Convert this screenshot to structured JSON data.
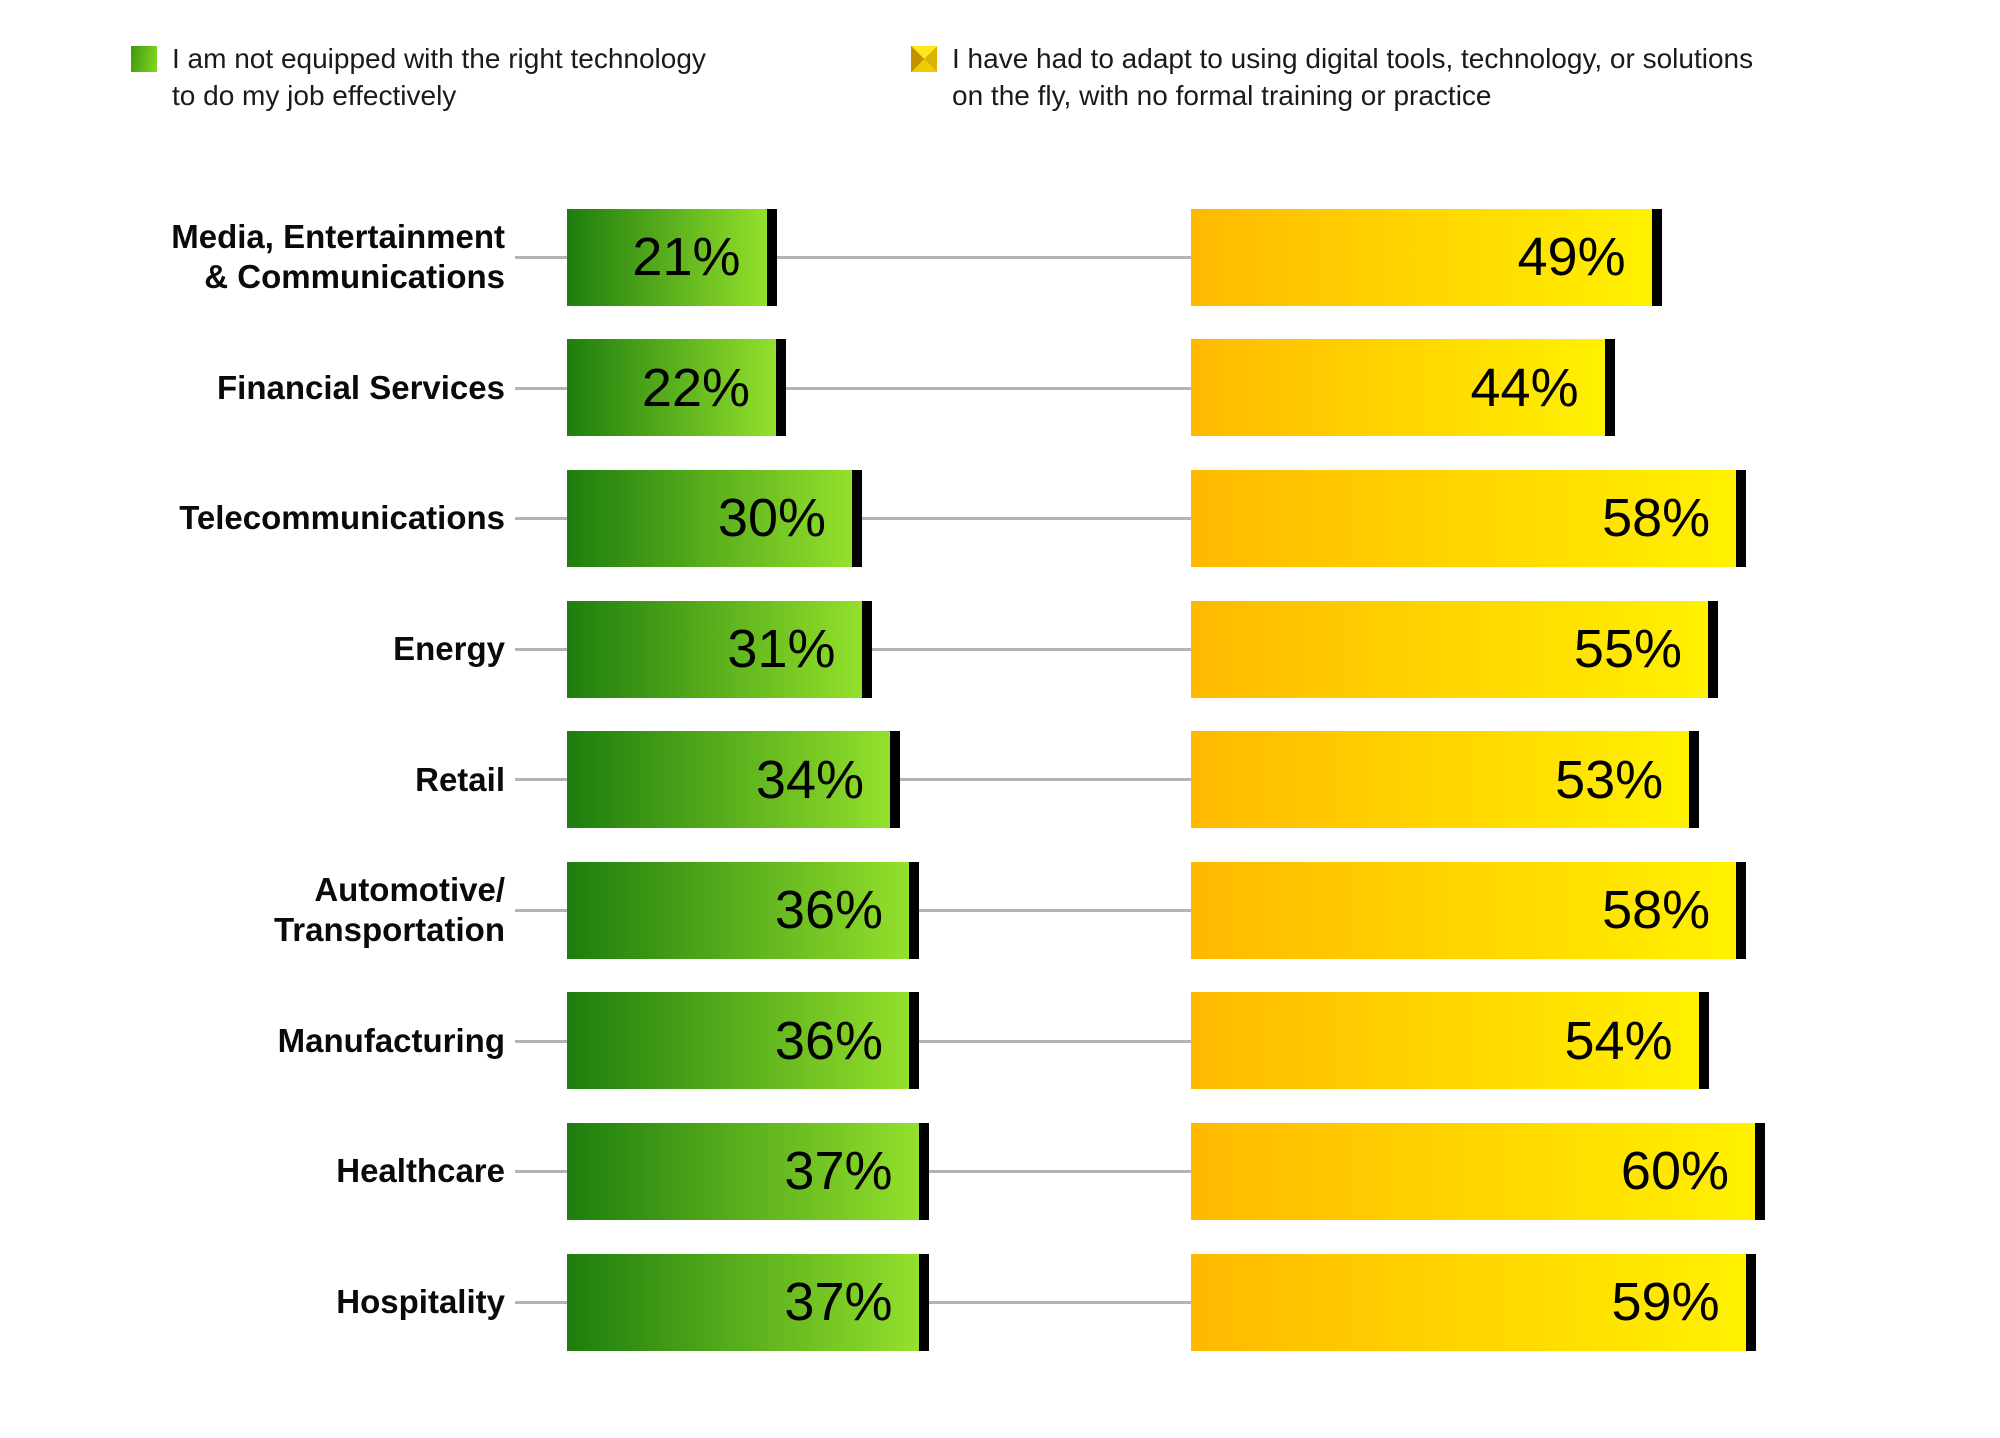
{
  "legend": {
    "items": [
      {
        "swatch_icon": "green-gradient-square",
        "lines": [
          "I am not equipped with the right technology",
          "to do my job effectively"
        ]
      },
      {
        "swatch_icon": "yellow-x-gradient-square",
        "lines": [
          "I have had to adapt to using digital tools, technology, or solutions",
          "on the fly, with no formal training or practice"
        ]
      }
    ]
  },
  "chart_data": {
    "type": "bar",
    "orientation": "horizontal",
    "categories": [
      "Media, Entertainment & Communications",
      "Financial Services",
      "Telecommunications",
      "Energy",
      "Retail",
      "Automotive/Transportation",
      "Manufacturing",
      "Healthcare",
      "Hospitality"
    ],
    "category_label_lines": [
      [
        "Media, Entertainment",
        "& Communications"
      ],
      [
        "Financial Services"
      ],
      [
        "Telecommunications"
      ],
      [
        "Energy"
      ],
      [
        "Retail"
      ],
      [
        "Automotive/",
        "Transportation"
      ],
      [
        "Manufacturing"
      ],
      [
        "Healthcare"
      ],
      [
        "Hospitality"
      ]
    ],
    "series": [
      {
        "name": "I am not equipped with the right technology to do my job effectively",
        "values": [
          21,
          22,
          30,
          31,
          34,
          36,
          36,
          37,
          37
        ],
        "color_start": "#1E7D0D",
        "color_end": "#94E02C"
      },
      {
        "name": "I have had to adapt to using digital tools, technology, or solutions on the fly, with no formal training or practice",
        "values": [
          49,
          44,
          58,
          55,
          53,
          58,
          54,
          60,
          59
        ],
        "color_start": "#FFB900",
        "color_end": "#FFF100"
      }
    ],
    "value_suffix": "%",
    "data_labels": "inside-end",
    "bar_end_cap_color": "#000000",
    "connector_color": "#B3B3B3",
    "axis": "none",
    "grid": false,
    "legend_position": "top",
    "xlim": [
      0,
      100
    ]
  }
}
